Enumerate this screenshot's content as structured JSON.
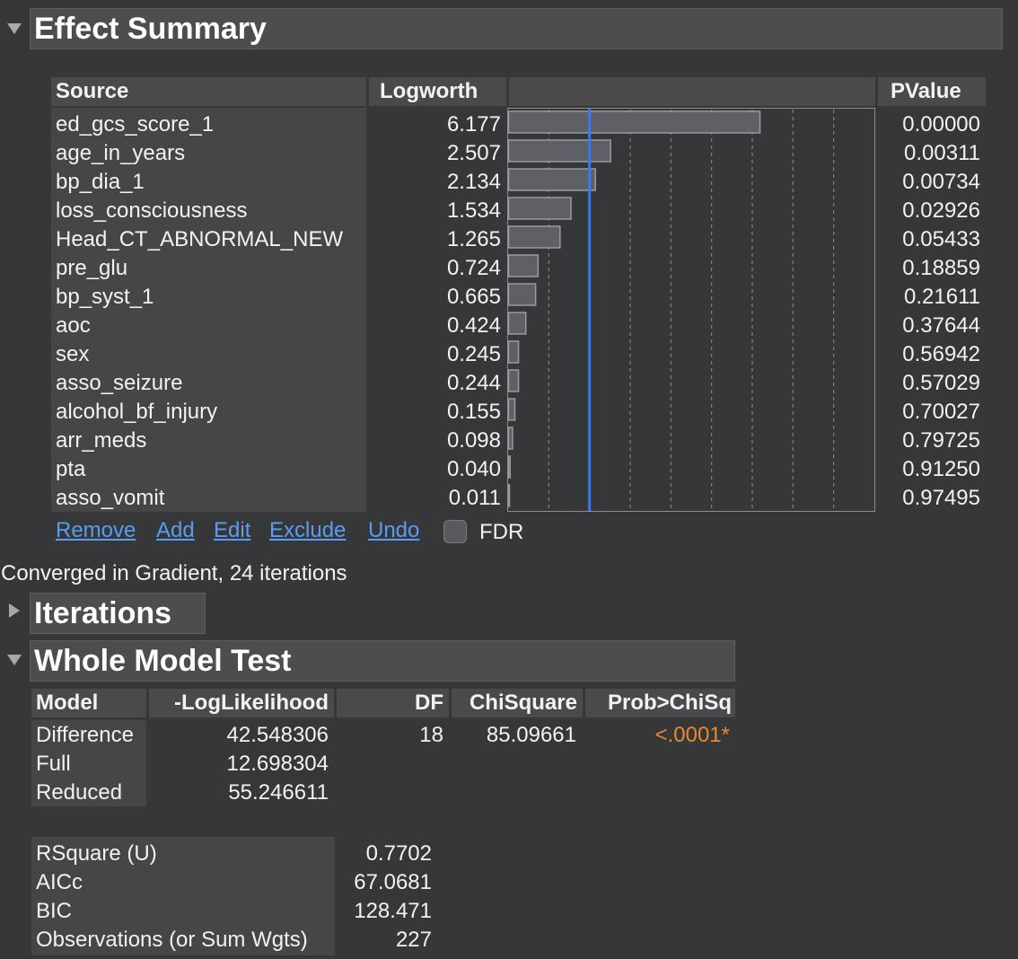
{
  "effect_summary": {
    "title": "Effect Summary",
    "columns": {
      "source": "Source",
      "logworth": "Logworth",
      "pvalue": "PValue"
    },
    "rows": [
      {
        "source": "ed_gcs_score_1",
        "logworth": "6.177",
        "pvalue": "0.00000"
      },
      {
        "source": "age_in_years",
        "logworth": "2.507",
        "pvalue": "0.00311"
      },
      {
        "source": "bp_dia_1",
        "logworth": "2.134",
        "pvalue": "0.00734"
      },
      {
        "source": "loss_consciousness",
        "logworth": "1.534",
        "pvalue": "0.02926"
      },
      {
        "source": "Head_CT_ABNORMAL_NEW",
        "logworth": "1.265",
        "pvalue": "0.05433"
      },
      {
        "source": "pre_glu",
        "logworth": "0.724",
        "pvalue": "0.18859"
      },
      {
        "source": "bp_syst_1",
        "logworth": "0.665",
        "pvalue": "0.21611"
      },
      {
        "source": "aoc",
        "logworth": "0.424",
        "pvalue": "0.37644"
      },
      {
        "source": "sex",
        "logworth": "0.245",
        "pvalue": "0.56942"
      },
      {
        "source": "asso_seizure",
        "logworth": "0.244",
        "pvalue": "0.57029"
      },
      {
        "source": "alcohol_bf_injury",
        "logworth": "0.155",
        "pvalue": "0.70027"
      },
      {
        "source": "arr_meds",
        "logworth": "0.098",
        "pvalue": "0.79725"
      },
      {
        "source": "pta",
        "logworth": "0.040",
        "pvalue": "0.91250"
      },
      {
        "source": "asso_vomit",
        "logworth": "0.011",
        "pvalue": "0.97495"
      }
    ],
    "actions": [
      "Remove",
      "Add",
      "Edit",
      "Exclude",
      "Undo"
    ],
    "fdr_label": "FDR",
    "fdr_checked": false,
    "bar_max": 9,
    "threshold_logworth": 2
  },
  "convergence_text": "Converged in Gradient, 24 iterations",
  "iterations": {
    "title": "Iterations"
  },
  "whole_model": {
    "title": "Whole Model Test",
    "columns": {
      "model": "Model",
      "loglik": "-LogLikelihood",
      "df": "DF",
      "chisq": "ChiSquare",
      "prob": "Prob>ChiSq"
    },
    "rows": [
      {
        "model": "Difference",
        "loglik": "42.548306",
        "df": "18",
        "chisq": "85.09661",
        "prob": "<.0001*"
      },
      {
        "model": "Full",
        "loglik": "12.698304",
        "df": "",
        "chisq": "",
        "prob": ""
      },
      {
        "model": "Reduced",
        "loglik": "55.246611",
        "df": "",
        "chisq": "",
        "prob": ""
      }
    ],
    "stats": [
      {
        "label": "RSquare (U)",
        "value": "0.7702"
      },
      {
        "label": "AICc",
        "value": "67.0681"
      },
      {
        "label": "BIC",
        "value": "128.471"
      },
      {
        "label": "Observations (or Sum Wgts)",
        "value": "227"
      }
    ],
    "prob_color": "#e8892f"
  },
  "colors": {
    "bar_fill": "#5f6066",
    "bar_stroke": "#9a9aa0",
    "threshold_line": "#3a78f2",
    "link": "#5b9cf0"
  }
}
